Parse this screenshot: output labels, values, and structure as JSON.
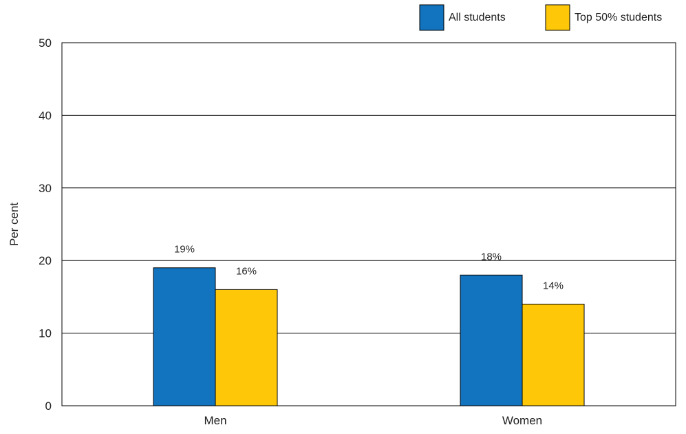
{
  "chart_data": {
    "type": "bar",
    "title": "",
    "xlabel": "",
    "ylabel": "Per cent",
    "ylim": [
      0,
      50
    ],
    "yticks": [
      0,
      10,
      20,
      30,
      40,
      50
    ],
    "grid": true,
    "legend_position": "top-right",
    "categories": [
      "Men",
      "Women"
    ],
    "series": [
      {
        "name": "All students",
        "color": "#1273BE",
        "values": [
          19,
          18
        ],
        "labels": [
          "19%",
          "18%"
        ]
      },
      {
        "name": "Top 50% students",
        "color": "#FEC808",
        "values": [
          16,
          14
        ],
        "labels": [
          "16%",
          "14%"
        ]
      }
    ]
  }
}
